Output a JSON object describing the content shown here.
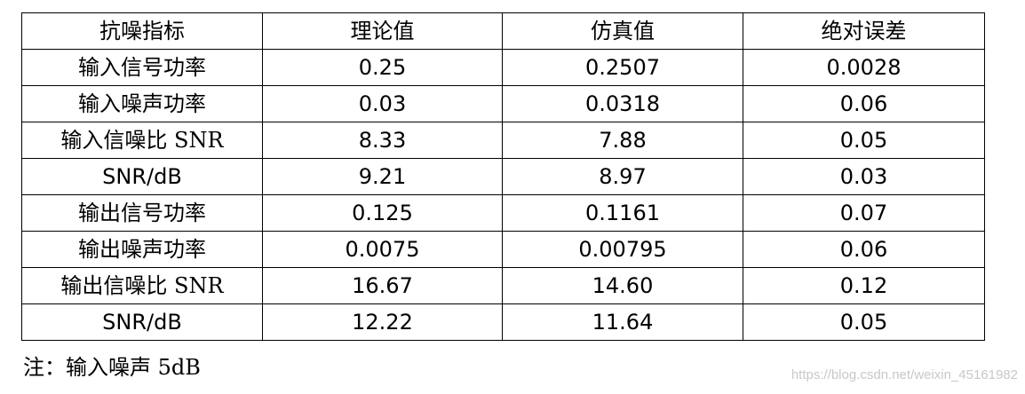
{
  "table": {
    "headers": [
      "抗噪指标",
      "理论值",
      "仿真值",
      "绝对误差"
    ],
    "rows": [
      [
        "输入信号功率",
        "0.25",
        "0.2507",
        "0.0028"
      ],
      [
        "输入噪声功率",
        "0.03",
        "0.0318",
        "0.06"
      ],
      [
        "输入信噪比 SNR",
        "8.33",
        "7.88",
        "0.05"
      ],
      [
        "SNR/dB",
        "9.21",
        "8.97",
        "0.03"
      ],
      [
        "输出信号功率",
        "0.125",
        "0.1161",
        "0.07"
      ],
      [
        "输出噪声功率",
        "0.0075",
        "0.00795",
        "0.06"
      ],
      [
        "输出信噪比 SNR",
        "16.67",
        "14.60",
        "0.12"
      ],
      [
        "SNR/dB",
        "12.22",
        "11.64",
        "0.05"
      ]
    ]
  },
  "note": "注：输入噪声 5dB",
  "watermark": "https://blog.csdn.net/weixin_45161982"
}
